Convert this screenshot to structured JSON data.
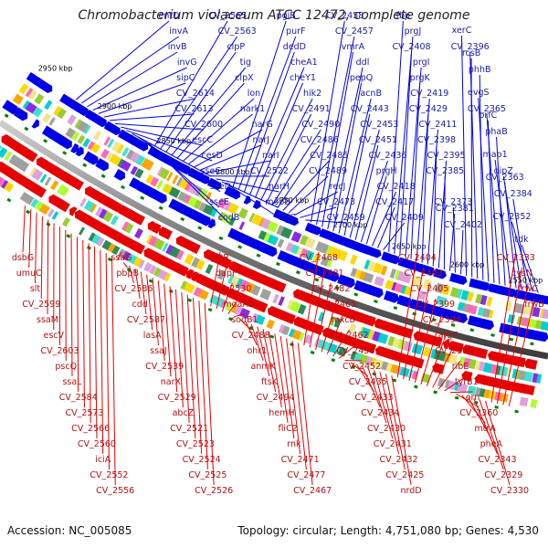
{
  "title": "Chromobacterium violaceum ATCC 12472, complete genome",
  "accession_label": "Accession: NC_005085",
  "topology_label": "Topology: circular; Length: 4,751,080 bp; Genes: 4,530",
  "colors": {
    "forward": "#0000e6",
    "reverse": "#e60000",
    "backbone": "#808080",
    "tick": "#008000"
  },
  "kbp_ticks": [
    "2950 kbp",
    "2900 kbp",
    "2850 kbp",
    "2800 kbp",
    "2750 kbp",
    "2700 kbp",
    "2650 kbp",
    "2600 kbp",
    "2550 kbp"
  ],
  "forward_labels": [
    "entD",
    "invA",
    "invB",
    "invG",
    "sipC",
    "CV_2614",
    "CV_2613",
    "CV_2600",
    "escC",
    "cesD",
    "sseC",
    "sseD",
    "sseE",
    "codB",
    "CV_2565",
    "CV_2563",
    "clpP",
    "tig",
    "clpX",
    "lon",
    "nark1",
    "narG",
    "narJ",
    "narI",
    "CV_2522",
    "narH",
    "mobB",
    "folC",
    "pgiB",
    "purF",
    "dedD",
    "cheA1",
    "cheY1",
    "hik2",
    "CV_2491",
    "CV_2490",
    "CV_2486",
    "CV_2485",
    "CV_2489",
    "recJ",
    "CV_2473",
    "CV_2459",
    "CV_2458",
    "CV_2457",
    "vmrA",
    "ddl",
    "pepQ",
    "acnB",
    "CV_2443",
    "CV_2453",
    "CV_2451",
    "CV_2436",
    "prgH",
    "CV_2418",
    "CV_2417",
    "CV_2409",
    "fbp",
    "prgJ",
    "CV_2408",
    "prgI",
    "prgK",
    "CV_2419",
    "CV_2429",
    "CV_2411",
    "CV_2398",
    "CV_2395",
    "CV_2385",
    "CV_2381",
    "CV_2373",
    "CV_2402",
    "xerC",
    "rcsB",
    "CV_2396",
    "phhB",
    "evgS",
    "prfC",
    "CV_2365",
    "phaB",
    "map1",
    "CV_2363",
    "dipZ",
    "CV_2384",
    "CV_2352",
    "tdk"
  ],
  "reverse_labels": [
    "dsbG",
    "umuC",
    "slt",
    "CV_2599",
    "ssaM",
    "escV",
    "CV_2603",
    "pscQ",
    "ssaL",
    "CV_2584",
    "CV_2573",
    "CV_2566",
    "CV_2560",
    "iciA",
    "CV_2552",
    "CV_2556",
    "ssaG",
    "pbpB",
    "CV_2586",
    "cdd",
    "CV_2587",
    "lasA",
    "ssaJ",
    "CV_2539",
    "narX",
    "CV_2529",
    "abcZ",
    "CV_2521",
    "CV_2523",
    "CV_2524",
    "CV_2525",
    "CV_2526",
    "prtR",
    "dapF",
    "CV_2530",
    "moaA2",
    "sodB1",
    "CV_2488",
    "ohr1",
    "anmK",
    "ftsK",
    "CV_2494",
    "hemH",
    "fliC2",
    "rnk",
    "CV_2471",
    "CV_2477",
    "CV_2467",
    "CV_2468",
    "CV_2481",
    "CV_2482",
    "CV_2465",
    "mxcB",
    "CV_2462",
    "CV_2456",
    "CV_2452",
    "CV_2435",
    "CV_2433",
    "CV_2434",
    "CV_2430",
    "CV_2431",
    "CV_2432",
    "CV_2425",
    "nrdD",
    "CV_2404",
    "CV_2403",
    "CV_2405",
    "CV_2399",
    "CV_2394",
    "argE",
    "CV_2380",
    "ribE",
    "tyrB1",
    "orn",
    "CV_2360",
    "mtrA",
    "pheA",
    "CV_2343",
    "CV_2329",
    "CV_2330",
    "CV_2333",
    "cysN",
    "frwC",
    "frwB"
  ]
}
